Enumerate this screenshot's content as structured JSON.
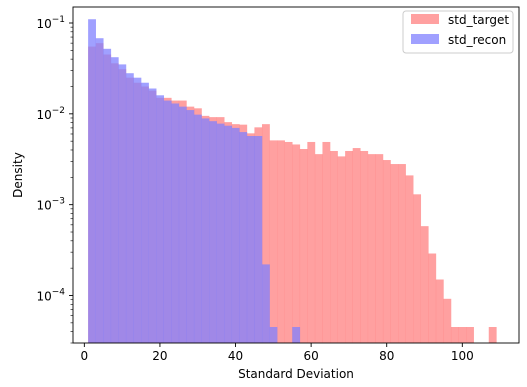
{
  "chart_data": {
    "type": "histogram",
    "title": "",
    "xlabel": "Standard Deviation",
    "ylabel": "Density",
    "xlim": [
      -3,
      115
    ],
    "ylim": [
      3e-05,
      0.15
    ],
    "yscale": "log",
    "grid": false,
    "legend_position": "top-right",
    "x_ticks": [
      0,
      20,
      40,
      60,
      80,
      100
    ],
    "x_tick_labels": [
      "0",
      "20",
      "40",
      "60",
      "80",
      "100"
    ],
    "y_ticks": [
      0.1,
      0.01,
      0.001,
      0.0001
    ],
    "y_tick_labels": [
      "10^-1",
      "10^-2",
      "10^-3",
      "10^-4"
    ],
    "bin_edges": [
      1,
      3,
      5,
      7,
      9,
      11,
      13,
      15,
      17,
      19,
      21,
      23,
      25,
      27,
      29,
      31,
      33,
      35,
      37,
      39,
      41,
      43,
      45,
      47,
      49,
      51,
      53,
      55,
      57,
      59,
      61,
      63,
      65,
      67,
      69,
      71,
      73,
      75,
      77,
      79,
      81,
      83,
      85,
      87,
      89,
      91,
      93,
      95,
      97,
      99,
      101,
      103,
      105,
      107,
      109,
      111
    ],
    "series": [
      {
        "name": "std_target",
        "color": "#ff8080",
        "values": [
          0.055,
          0.06,
          0.045,
          0.036,
          0.031,
          0.025,
          0.022,
          0.02,
          0.018,
          0.015,
          0.015,
          0.014,
          0.014,
          0.012,
          0.0115,
          0.0095,
          0.0092,
          0.0092,
          0.0081,
          0.0077,
          0.0076,
          0.0061,
          0.0071,
          0.0077,
          0.0051,
          0.0051,
          0.0049,
          0.0046,
          0.0041,
          0.0049,
          0.0036,
          0.0049,
          0.0039,
          0.0034,
          0.0039,
          0.0042,
          0.0039,
          0.0036,
          0.0036,
          0.0031,
          0.0028,
          0.0028,
          0.0021,
          0.0013,
          0.00058,
          0.00029,
          0.00015,
          9.2e-05,
          4.5e-05,
          4.5e-05,
          4.5e-05,
          0,
          0,
          4.5e-05,
          0
        ]
      },
      {
        "name": "std_recon",
        "color": "#8080ff",
        "values": [
          0.11,
          0.068,
          0.052,
          0.042,
          0.035,
          0.028,
          0.025,
          0.022,
          0.019,
          0.016,
          0.014,
          0.013,
          0.012,
          0.011,
          0.0098,
          0.0089,
          0.0083,
          0.0078,
          0.0074,
          0.007,
          0.0063,
          0.0057,
          0.0057,
          0.00022,
          4.5e-05,
          0,
          0,
          4.5e-05,
          0,
          0,
          0,
          0,
          0,
          0,
          0,
          0,
          0,
          0,
          0,
          0,
          0,
          0,
          0,
          0,
          0,
          0,
          0,
          0,
          0,
          0,
          0,
          0,
          0,
          0,
          0
        ]
      }
    ]
  }
}
